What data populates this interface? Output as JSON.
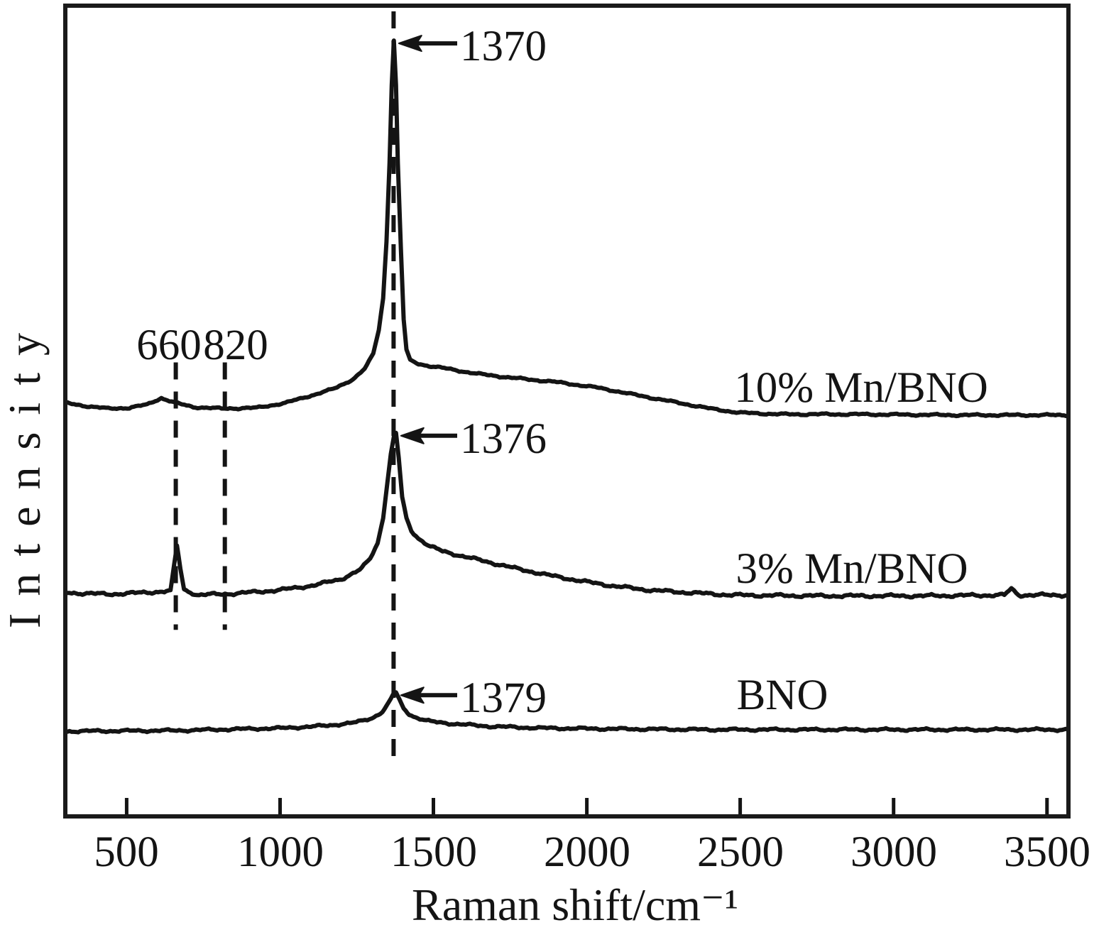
{
  "figure": {
    "background": "#ffffff",
    "line_color": "#141414",
    "frame_color": "#1a1a1a"
  },
  "chart_data": {
    "type": "line",
    "title": "",
    "xlabel": "Raman shift/cm⁻¹",
    "ylabel": "Intensity",
    "xlim": [
      300,
      3570
    ],
    "ylim": [
      0,
      100
    ],
    "grid": false,
    "legend_position": "inline-right-of-each-curve",
    "x_ticks": [
      "500",
      "1000",
      "1500",
      "2000",
      "2500",
      "3000",
      "3500"
    ],
    "x_tick_values": [
      500,
      1000,
      1500,
      2000,
      2500,
      3000,
      3500
    ],
    "guide_lines": [
      {
        "x": 660,
        "label": "660",
        "style": "dashed",
        "i_span": [
          23.0,
          56.0
        ]
      },
      {
        "x": 820,
        "label": "820",
        "style": "dashed",
        "i_span": [
          23.0,
          56.0
        ]
      },
      {
        "x": 1370,
        "label": "",
        "style": "dashed",
        "i_span": [
          6.8,
          99.3
        ]
      }
    ],
    "series": [
      {
        "name": "10% Mn/BNO",
        "peak": {
          "label": "1370",
          "x": 1370
        },
        "points": [
          [
            300,
            51.0
          ],
          [
            371,
            50.6
          ],
          [
            440,
            50.3
          ],
          [
            509,
            50.4
          ],
          [
            567,
            50.8
          ],
          [
            613,
            51.6
          ],
          [
            659,
            51.0
          ],
          [
            717,
            50.5
          ],
          [
            809,
            50.3
          ],
          [
            925,
            50.4
          ],
          [
            1017,
            51.0
          ],
          [
            1110,
            52.0
          ],
          [
            1179,
            52.8
          ],
          [
            1237,
            53.9
          ],
          [
            1276,
            55.2
          ],
          [
            1304,
            57.1
          ],
          [
            1322,
            60.0
          ],
          [
            1336,
            63.9
          ],
          [
            1347,
            70.9
          ],
          [
            1357,
            80.6
          ],
          [
            1364,
            90.2
          ],
          [
            1371,
            95.7
          ],
          [
            1378,
            90.2
          ],
          [
            1384,
            80.6
          ],
          [
            1394,
            70.0
          ],
          [
            1403,
            61.3
          ],
          [
            1412,
            57.6
          ],
          [
            1424,
            56.3
          ],
          [
            1445,
            55.9
          ],
          [
            1479,
            55.6
          ],
          [
            1549,
            55.2
          ],
          [
            1641,
            54.6
          ],
          [
            1756,
            54.1
          ],
          [
            1895,
            53.6
          ],
          [
            2033,
            52.9
          ],
          [
            2172,
            51.9
          ],
          [
            2287,
            51.1
          ],
          [
            2403,
            50.3
          ],
          [
            2495,
            49.8
          ],
          [
            2634,
            49.6
          ],
          [
            2865,
            49.6
          ],
          [
            3211,
            49.5
          ],
          [
            3569,
            49.5
          ]
        ]
      },
      {
        "name": "3% Mn/BNO",
        "peak": {
          "label": "1376",
          "x": 1376
        },
        "points": [
          [
            300,
            27.6
          ],
          [
            440,
            27.4
          ],
          [
            555,
            27.6
          ],
          [
            643,
            27.8
          ],
          [
            655,
            31.1
          ],
          [
            664,
            33.4
          ],
          [
            675,
            30.6
          ],
          [
            687,
            28.0
          ],
          [
            729,
            27.3
          ],
          [
            856,
            27.5
          ],
          [
            994,
            27.9
          ],
          [
            1110,
            28.5
          ],
          [
            1202,
            29.3
          ],
          [
            1260,
            30.4
          ],
          [
            1294,
            31.8
          ],
          [
            1318,
            33.7
          ],
          [
            1336,
            36.8
          ],
          [
            1350,
            41.2
          ],
          [
            1361,
            44.7
          ],
          [
            1371,
            46.8
          ],
          [
            1378,
            47.3
          ],
          [
            1387,
            44.2
          ],
          [
            1398,
            39.4
          ],
          [
            1412,
            36.8
          ],
          [
            1428,
            35.2
          ],
          [
            1451,
            34.3
          ],
          [
            1484,
            33.4
          ],
          [
            1530,
            32.7
          ],
          [
            1595,
            32.1
          ],
          [
            1687,
            31.3
          ],
          [
            1779,
            30.5
          ],
          [
            1883,
            29.7
          ],
          [
            1987,
            29.0
          ],
          [
            2091,
            28.4
          ],
          [
            2207,
            27.9
          ],
          [
            2334,
            27.6
          ],
          [
            2472,
            27.3
          ],
          [
            2749,
            27.2
          ],
          [
            3096,
            27.2
          ],
          [
            3361,
            27.3
          ],
          [
            3384,
            28.1
          ],
          [
            3408,
            27.3
          ],
          [
            3569,
            27.3
          ]
        ]
      },
      {
        "name": "BNO",
        "peak": {
          "label": "1379",
          "x": 1379
        },
        "points": [
          [
            300,
            10.5
          ],
          [
            671,
            10.6
          ],
          [
            1017,
            10.9
          ],
          [
            1156,
            11.2
          ],
          [
            1248,
            11.6
          ],
          [
            1299,
            12.1
          ],
          [
            1334,
            12.9
          ],
          [
            1354,
            14.0
          ],
          [
            1368,
            15.0
          ],
          [
            1378,
            15.3
          ],
          [
            1389,
            14.4
          ],
          [
            1403,
            13.3
          ],
          [
            1421,
            12.6
          ],
          [
            1449,
            12.1
          ],
          [
            1491,
            11.7
          ],
          [
            1571,
            11.4
          ],
          [
            1687,
            11.1
          ],
          [
            1849,
            10.9
          ],
          [
            2057,
            10.8
          ],
          [
            2403,
            10.7
          ],
          [
            2865,
            10.7
          ],
          [
            3327,
            10.7
          ],
          [
            3569,
            10.7
          ]
        ]
      }
    ]
  }
}
